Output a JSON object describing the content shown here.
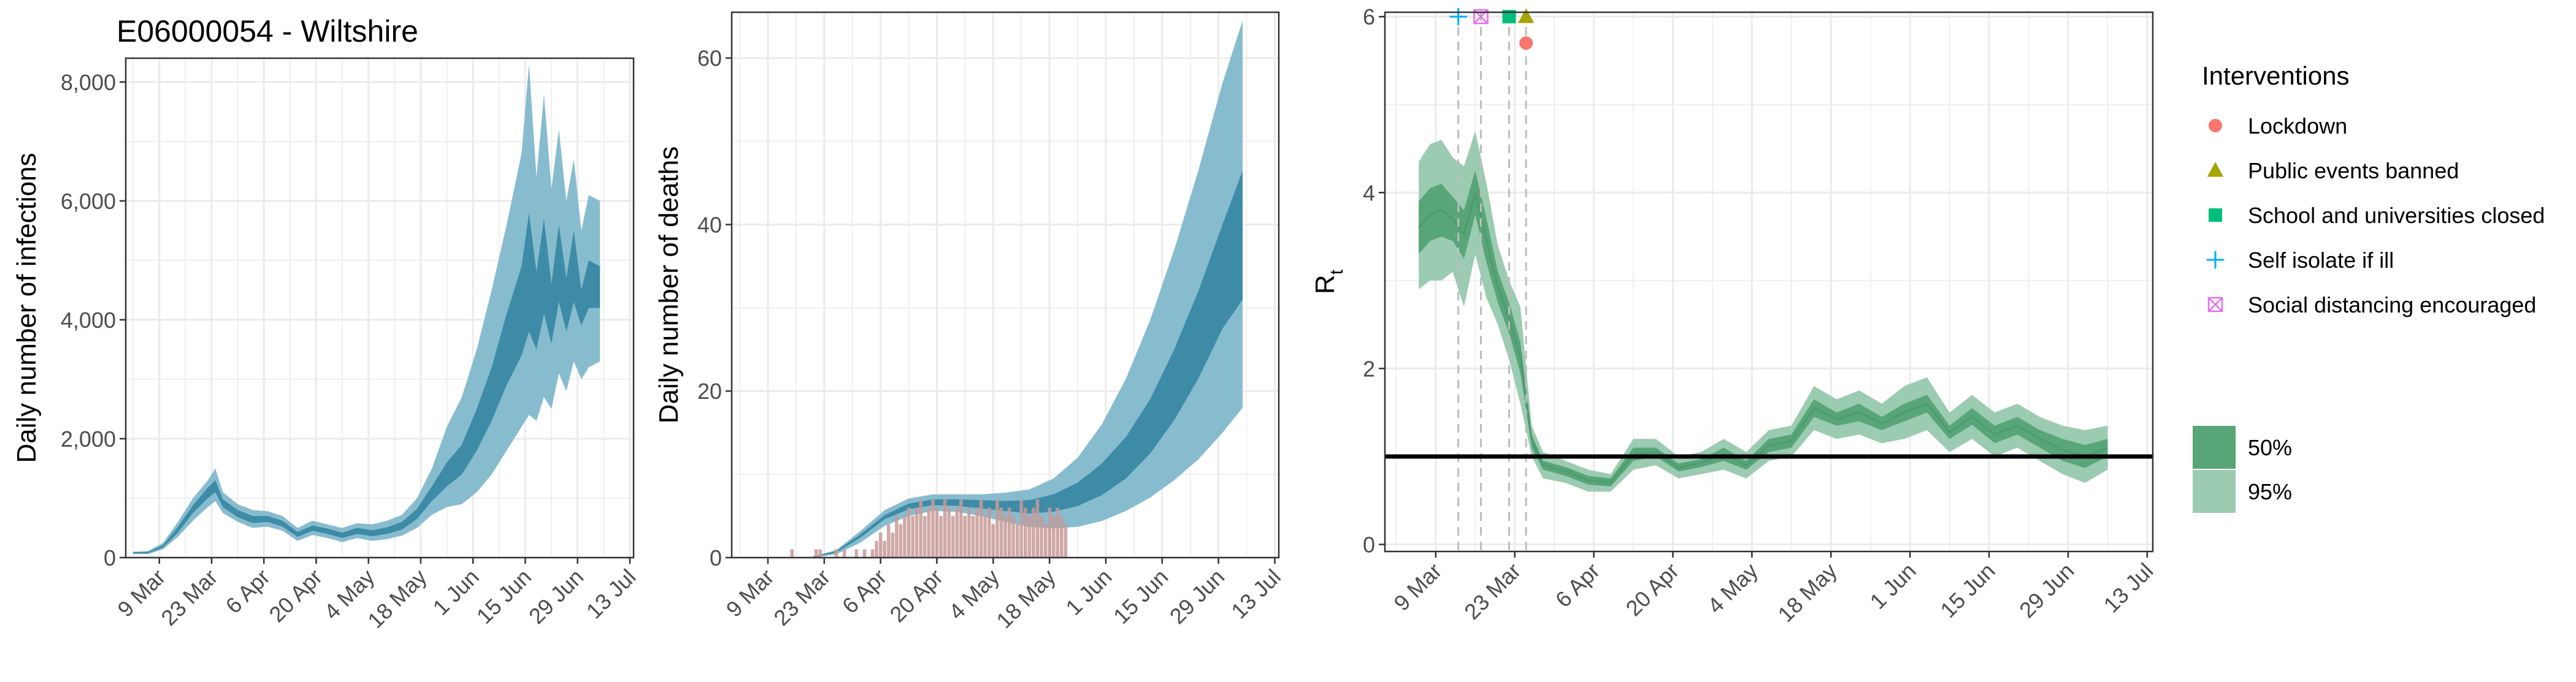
{
  "title": "E06000054 - Wiltshire",
  "colors": {
    "infections_95": "#87BCCF",
    "infections_50": "#3D8BA6",
    "deaths_95": "#87BCCF",
    "deaths_50": "#3D8BA6",
    "deaths_observed": "#C79A98",
    "rt_95": "#9BCBB0",
    "rt_50": "#57A578",
    "rt_line": "#4E9B70",
    "lockdown": "#F8766D",
    "public_events": "#A3A500",
    "school": "#00BF7D",
    "self_isolate": "#00B0F6",
    "social_distancing": "#E76BF3"
  },
  "chart_data": [
    {
      "type": "area",
      "ylabel": "Daily number of infections",
      "xlim": [
        "2020-02-29",
        "2020-07-14"
      ],
      "ylim": [
        0,
        8400
      ],
      "y_ticks": [
        0,
        2000,
        4000,
        6000,
        8000
      ],
      "y_tick_labels": [
        "0",
        "2,000",
        "4,000",
        "6,000",
        "8,000"
      ],
      "x_tick_labels": [
        "9 Mar",
        "23 Mar",
        "6 Apr",
        "20 Apr",
        "4 May",
        "18 May",
        "1 Jun",
        "15 Jun",
        "29 Jun",
        "13 Jul"
      ],
      "x_tick_dates": [
        "2020-03-09",
        "2020-03-23",
        "2020-04-06",
        "2020-04-20",
        "2020-05-04",
        "2020-05-18",
        "2020-06-01",
        "2020-06-15",
        "2020-06-29",
        "2020-07-13"
      ],
      "grid": true,
      "series": [
        {
          "kind": "ribbon",
          "level": "95%",
          "x": [
            "2020-03-02",
            "2020-03-06",
            "2020-03-10",
            "2020-03-14",
            "2020-03-18",
            "2020-03-22",
            "2020-03-24",
            "2020-03-26",
            "2020-03-30",
            "2020-04-03",
            "2020-04-07",
            "2020-04-11",
            "2020-04-15",
            "2020-04-19",
            "2020-04-23",
            "2020-04-27",
            "2020-05-01",
            "2020-05-05",
            "2020-05-09",
            "2020-05-13",
            "2020-05-17",
            "2020-05-21",
            "2020-05-25",
            "2020-05-29",
            "2020-06-02",
            "2020-06-06",
            "2020-06-10",
            "2020-06-14",
            "2020-06-16",
            "2020-06-18",
            "2020-06-20",
            "2020-06-22",
            "2020-06-24",
            "2020-06-26",
            "2020-06-28",
            "2020-06-30",
            "2020-07-02",
            "2020-07-05"
          ],
          "lower": [
            60,
            60,
            140,
            350,
            620,
            850,
            950,
            750,
            600,
            500,
            520,
            450,
            280,
            380,
            330,
            260,
            330,
            280,
            310,
            370,
            500,
            720,
            850,
            900,
            1100,
            1400,
            1800,
            2200,
            2400,
            2300,
            2700,
            2500,
            3100,
            2800,
            3300,
            3000,
            3200,
            3300
          ],
          "upper": [
            100,
            110,
            250,
            600,
            1000,
            1300,
            1500,
            1100,
            900,
            800,
            780,
            700,
            500,
            620,
            560,
            500,
            580,
            560,
            620,
            720,
            1000,
            1500,
            2200,
            2700,
            3500,
            4500,
            5600,
            6800,
            8300,
            6400,
            7800,
            6200,
            7200,
            6000,
            6700,
            5500,
            6100,
            6000
          ]
        },
        {
          "kind": "ribbon",
          "level": "50%",
          "x": [
            "2020-03-02",
            "2020-03-06",
            "2020-03-10",
            "2020-03-14",
            "2020-03-18",
            "2020-03-22",
            "2020-03-24",
            "2020-03-26",
            "2020-03-30",
            "2020-04-03",
            "2020-04-07",
            "2020-04-11",
            "2020-04-15",
            "2020-04-19",
            "2020-04-23",
            "2020-04-27",
            "2020-05-01",
            "2020-05-05",
            "2020-05-09",
            "2020-05-13",
            "2020-05-17",
            "2020-05-21",
            "2020-05-25",
            "2020-05-29",
            "2020-06-02",
            "2020-06-06",
            "2020-06-10",
            "2020-06-14",
            "2020-06-16",
            "2020-06-18",
            "2020-06-20",
            "2020-06-22",
            "2020-06-24",
            "2020-06-26",
            "2020-06-28",
            "2020-06-30",
            "2020-07-02",
            "2020-07-05"
          ],
          "lower": [
            70,
            75,
            170,
            420,
            750,
            1000,
            1100,
            850,
            680,
            580,
            600,
            520,
            350,
            450,
            400,
            330,
            400,
            360,
            400,
            470,
            650,
            950,
            1200,
            1400,
            1800,
            2300,
            2900,
            3400,
            3800,
            3500,
            4100,
            3600,
            4300,
            3800,
            4300,
            3900,
            4200,
            4200
          ],
          "upper": [
            90,
            95,
            210,
            520,
            880,
            1180,
            1300,
            980,
            800,
            700,
            700,
            620,
            430,
            540,
            490,
            420,
            500,
            460,
            510,
            600,
            820,
            1200,
            1600,
            1900,
            2500,
            3200,
            4100,
            4900,
            5800,
            4800,
            5700,
            4600,
            5600,
            4700,
            5500,
            4500,
            5000,
            4900
          ]
        }
      ]
    },
    {
      "type": "area",
      "ylabel": "Daily number of deaths",
      "xlim": [
        "2020-02-29",
        "2020-07-14"
      ],
      "ylim": [
        0,
        65.5
      ],
      "y_ticks": [
        0,
        20,
        40,
        60
      ],
      "y_tick_labels": [
        "0",
        "20",
        "40",
        "60"
      ],
      "x_tick_labels": [
        "9 Mar",
        "23 Mar",
        "6 Apr",
        "20 Apr",
        "4 May",
        "18 May",
        "1 Jun",
        "15 Jun",
        "29 Jun",
        "13 Jul"
      ],
      "x_tick_dates": [
        "2020-03-09",
        "2020-03-23",
        "2020-04-06",
        "2020-04-20",
        "2020-05-04",
        "2020-05-18",
        "2020-06-01",
        "2020-06-15",
        "2020-06-29",
        "2020-07-13"
      ],
      "grid": true,
      "series": [
        {
          "kind": "ribbon",
          "level": "95%",
          "x": [
            "2020-03-20",
            "2020-03-26",
            "2020-04-01",
            "2020-04-07",
            "2020-04-13",
            "2020-04-19",
            "2020-04-25",
            "2020-05-01",
            "2020-05-07",
            "2020-05-13",
            "2020-05-19",
            "2020-05-25",
            "2020-05-31",
            "2020-06-06",
            "2020-06-12",
            "2020-06-18",
            "2020-06-24",
            "2020-06-30",
            "2020-07-05"
          ],
          "lower": [
            0,
            0.4,
            1.8,
            3.8,
            5.0,
            5.6,
            5.5,
            5.0,
            4.3,
            3.7,
            3.5,
            3.7,
            4.4,
            5.6,
            7.2,
            9.3,
            11.8,
            15.0,
            18.0
          ],
          "upper": [
            0.1,
            0.9,
            3.2,
            5.7,
            7.1,
            7.6,
            7.6,
            7.6,
            7.8,
            8.2,
            9.5,
            12.0,
            16.0,
            21.5,
            28.5,
            37.0,
            46.5,
            57.0,
            64.5
          ]
        },
        {
          "kind": "ribbon",
          "level": "50%",
          "x": [
            "2020-03-20",
            "2020-03-26",
            "2020-04-01",
            "2020-04-07",
            "2020-04-13",
            "2020-04-19",
            "2020-04-25",
            "2020-05-01",
            "2020-05-07",
            "2020-05-13",
            "2020-05-19",
            "2020-05-25",
            "2020-05-31",
            "2020-06-06",
            "2020-06-12",
            "2020-06-18",
            "2020-06-24",
            "2020-06-30",
            "2020-07-05"
          ],
          "lower": [
            0,
            0.6,
            2.4,
            4.6,
            5.8,
            6.3,
            6.2,
            5.9,
            5.6,
            5.3,
            5.5,
            6.2,
            7.5,
            9.5,
            12.5,
            16.5,
            21.5,
            27.5,
            31.0
          ],
          "upper": [
            0.1,
            0.8,
            2.8,
            5.1,
            6.5,
            7.0,
            7.0,
            6.9,
            6.8,
            6.9,
            7.6,
            9.0,
            11.3,
            14.5,
            19.0,
            25.0,
            32.0,
            40.0,
            46.5
          ]
        },
        {
          "kind": "bars",
          "name": "observed deaths",
          "x": [
            "2020-03-15",
            "2020-03-21",
            "2020-03-22",
            "2020-03-26",
            "2020-03-28",
            "2020-03-31",
            "2020-04-02",
            "2020-04-04",
            "2020-04-05",
            "2020-04-06",
            "2020-04-07",
            "2020-04-08",
            "2020-04-09",
            "2020-04-10",
            "2020-04-11",
            "2020-04-12",
            "2020-04-13",
            "2020-04-14",
            "2020-04-15",
            "2020-04-16",
            "2020-04-17",
            "2020-04-18",
            "2020-04-19",
            "2020-04-20",
            "2020-04-21",
            "2020-04-22",
            "2020-04-23",
            "2020-04-24",
            "2020-04-25",
            "2020-04-26",
            "2020-04-27",
            "2020-04-28",
            "2020-04-29",
            "2020-04-30",
            "2020-05-01",
            "2020-05-02",
            "2020-05-03",
            "2020-05-04",
            "2020-05-05",
            "2020-05-06",
            "2020-05-07",
            "2020-05-08",
            "2020-05-09",
            "2020-05-10",
            "2020-05-11",
            "2020-05-12",
            "2020-05-13",
            "2020-05-14",
            "2020-05-15",
            "2020-05-16",
            "2020-05-17",
            "2020-05-18",
            "2020-05-19",
            "2020-05-20",
            "2020-05-21",
            "2020-05-22"
          ],
          "values": [
            1,
            1,
            1,
            1,
            1,
            1,
            1,
            1,
            2,
            3,
            2,
            4,
            3,
            5,
            4,
            5,
            6,
            5,
            6,
            7,
            5,
            6,
            7,
            6,
            5,
            7,
            6,
            5,
            6,
            7,
            5,
            6,
            5,
            6,
            7,
            5,
            6,
            4,
            7,
            6,
            5,
            6,
            5,
            4,
            7,
            6,
            5,
            6,
            7,
            5,
            4,
            6,
            5,
            6,
            5,
            4
          ]
        }
      ]
    },
    {
      "type": "area",
      "ylabel": "R",
      "ylabel_subscript": "t",
      "xlim": [
        "2020-02-29",
        "2020-07-14"
      ],
      "ylim": [
        -0.08,
        6.05
      ],
      "y_ticks": [
        0,
        2,
        4,
        6
      ],
      "y_tick_labels": [
        "0",
        "2",
        "4",
        "6"
      ],
      "x_tick_labels": [
        "9 Mar",
        "23 Mar",
        "6 Apr",
        "20 Apr",
        "4 May",
        "18 May",
        "1 Jun",
        "15 Jun",
        "29 Jun",
        "13 Jul"
      ],
      "x_tick_dates": [
        "2020-03-09",
        "2020-03-23",
        "2020-04-06",
        "2020-04-20",
        "2020-05-04",
        "2020-05-18",
        "2020-06-01",
        "2020-06-15",
        "2020-06-29",
        "2020-07-13"
      ],
      "grid": true,
      "reference_line": 1,
      "intervention_lines": [
        "2020-03-13",
        "2020-03-17",
        "2020-03-22",
        "2020-03-25"
      ],
      "interventions": [
        {
          "name": "Lockdown",
          "date": "2020-03-25",
          "y": 5.7,
          "shape": "circle"
        },
        {
          "name": "Public events banned",
          "date": "2020-03-25",
          "y": 6.0,
          "shape": "triangle"
        },
        {
          "name": "School and universities closed",
          "date": "2020-03-22",
          "y": 6.0,
          "shape": "square"
        },
        {
          "name": "Self isolate if ill",
          "date": "2020-03-13",
          "y": 6.0,
          "shape": "plus"
        },
        {
          "name": "Social distancing encouraged",
          "date": "2020-03-17",
          "y": 6.0,
          "shape": "boxed-x"
        }
      ],
      "series": [
        {
          "kind": "ribbon",
          "level": "95%",
          "x": [
            "2020-03-06",
            "2020-03-08",
            "2020-03-10",
            "2020-03-12",
            "2020-03-14",
            "2020-03-16",
            "2020-03-18",
            "2020-03-20",
            "2020-03-22",
            "2020-03-24",
            "2020-03-26",
            "2020-03-28",
            "2020-04-01",
            "2020-04-05",
            "2020-04-09",
            "2020-04-13",
            "2020-04-17",
            "2020-04-21",
            "2020-04-25",
            "2020-04-29",
            "2020-05-03",
            "2020-05-07",
            "2020-05-11",
            "2020-05-15",
            "2020-05-19",
            "2020-05-23",
            "2020-05-27",
            "2020-05-31",
            "2020-06-04",
            "2020-06-08",
            "2020-06-12",
            "2020-06-16",
            "2020-06-20",
            "2020-06-24",
            "2020-06-28",
            "2020-07-02",
            "2020-07-06"
          ],
          "lower": [
            2.9,
            3.0,
            3.0,
            3.1,
            2.7,
            3.3,
            2.8,
            2.5,
            2.1,
            1.6,
            1.0,
            0.75,
            0.7,
            0.6,
            0.6,
            0.85,
            0.9,
            0.75,
            0.8,
            0.85,
            0.75,
            0.95,
            1.0,
            1.3,
            1.2,
            1.25,
            1.15,
            1.2,
            1.3,
            1.05,
            1.2,
            1.0,
            1.1,
            0.95,
            0.8,
            0.7,
            0.85
          ],
          "upper": [
            4.35,
            4.55,
            4.6,
            4.4,
            4.3,
            4.7,
            4.1,
            3.4,
            3.0,
            2.7,
            1.35,
            1.05,
            0.95,
            0.85,
            0.8,
            1.2,
            1.2,
            1.0,
            1.05,
            1.2,
            1.05,
            1.3,
            1.35,
            1.8,
            1.65,
            1.75,
            1.6,
            1.8,
            1.9,
            1.5,
            1.7,
            1.5,
            1.6,
            1.45,
            1.35,
            1.3,
            1.35
          ]
        },
        {
          "kind": "ribbon",
          "level": "50%",
          "x": [
            "2020-03-06",
            "2020-03-08",
            "2020-03-10",
            "2020-03-12",
            "2020-03-14",
            "2020-03-16",
            "2020-03-18",
            "2020-03-20",
            "2020-03-22",
            "2020-03-24",
            "2020-03-26",
            "2020-03-28",
            "2020-04-01",
            "2020-04-05",
            "2020-04-09",
            "2020-04-13",
            "2020-04-17",
            "2020-04-21",
            "2020-04-25",
            "2020-04-29",
            "2020-05-03",
            "2020-05-07",
            "2020-05-11",
            "2020-05-15",
            "2020-05-19",
            "2020-05-23",
            "2020-05-27",
            "2020-05-31",
            "2020-06-04",
            "2020-06-08",
            "2020-06-12",
            "2020-06-16",
            "2020-06-20",
            "2020-06-24",
            "2020-06-28",
            "2020-07-02",
            "2020-07-06"
          ],
          "lower": [
            3.3,
            3.45,
            3.5,
            3.45,
            3.25,
            3.75,
            3.2,
            2.75,
            2.4,
            1.95,
            1.1,
            0.85,
            0.78,
            0.68,
            0.66,
            0.95,
            1.0,
            0.83,
            0.88,
            0.95,
            0.85,
            1.05,
            1.1,
            1.45,
            1.35,
            1.4,
            1.3,
            1.4,
            1.5,
            1.2,
            1.36,
            1.15,
            1.25,
            1.1,
            0.95,
            0.87,
            1.0
          ],
          "upper": [
            3.9,
            4.05,
            4.1,
            3.95,
            3.8,
            4.25,
            3.7,
            3.1,
            2.75,
            2.3,
            1.25,
            0.95,
            0.88,
            0.78,
            0.75,
            1.1,
            1.1,
            0.92,
            0.97,
            1.1,
            0.95,
            1.2,
            1.25,
            1.65,
            1.5,
            1.6,
            1.45,
            1.6,
            1.7,
            1.35,
            1.55,
            1.35,
            1.45,
            1.3,
            1.2,
            1.13,
            1.2
          ]
        }
      ]
    }
  ],
  "legend": {
    "position": "right",
    "interventions_title": "Interventions",
    "interventions": [
      {
        "label": "Lockdown",
        "shape": "circle"
      },
      {
        "label": "Public events banned",
        "shape": "triangle"
      },
      {
        "label": "School and universities closed",
        "shape": "square"
      },
      {
        "label": "Self isolate if ill",
        "shape": "plus"
      },
      {
        "label": "Social distancing encouraged",
        "shape": "boxed-x"
      }
    ],
    "ribbons": [
      {
        "label": "50%"
      },
      {
        "label": "95%"
      }
    ]
  }
}
